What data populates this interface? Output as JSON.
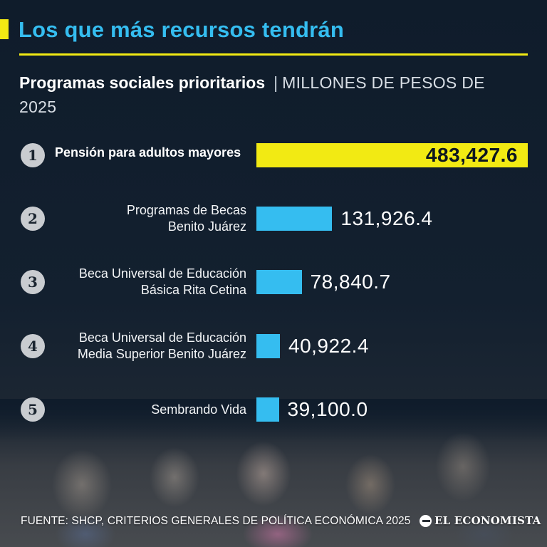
{
  "header": {
    "title": "Los que más recursos tendrán",
    "subtitle_strong": "Programas sociales prioritarios",
    "subtitle_separator": "|",
    "subtitle_unit": "MILLONES DE PESOS DE 2025"
  },
  "colors": {
    "accent_yellow": "#f2ea13",
    "bar_cyan": "#35bdf0",
    "background": "#0f1c2b"
  },
  "chart_data": {
    "type": "bar",
    "orientation": "horizontal",
    "title": "Programas sociales prioritarios",
    "unit": "MILLONES DE PESOS DE 2025",
    "ranks": [
      "1",
      "2",
      "3",
      "4",
      "5"
    ],
    "categories": [
      [
        "Pensión para adultos mayores"
      ],
      [
        "Programas de Becas",
        "Benito Juárez"
      ],
      [
        "Beca Universal de Educación",
        "Básica Rita Cetina"
      ],
      [
        "Beca Universal de Educación",
        "Media Superior Benito Juárez"
      ],
      [
        "Sembrando Vida"
      ]
    ],
    "values": [
      483427.6,
      131926.4,
      78840.7,
      40922.4,
      39100.0
    ],
    "value_labels": [
      "483,427.6",
      "131,926.4",
      "78,840.7",
      "40,922.4",
      "39,100.0"
    ],
    "highlight_index": 0,
    "grid": false
  },
  "footer": {
    "source": "FUENTE: SHCP, CRITERIOS GENERALES DE POLÍTICA ECONÓMICA 2025",
    "logo_text": "EL ECONOMISTA"
  }
}
